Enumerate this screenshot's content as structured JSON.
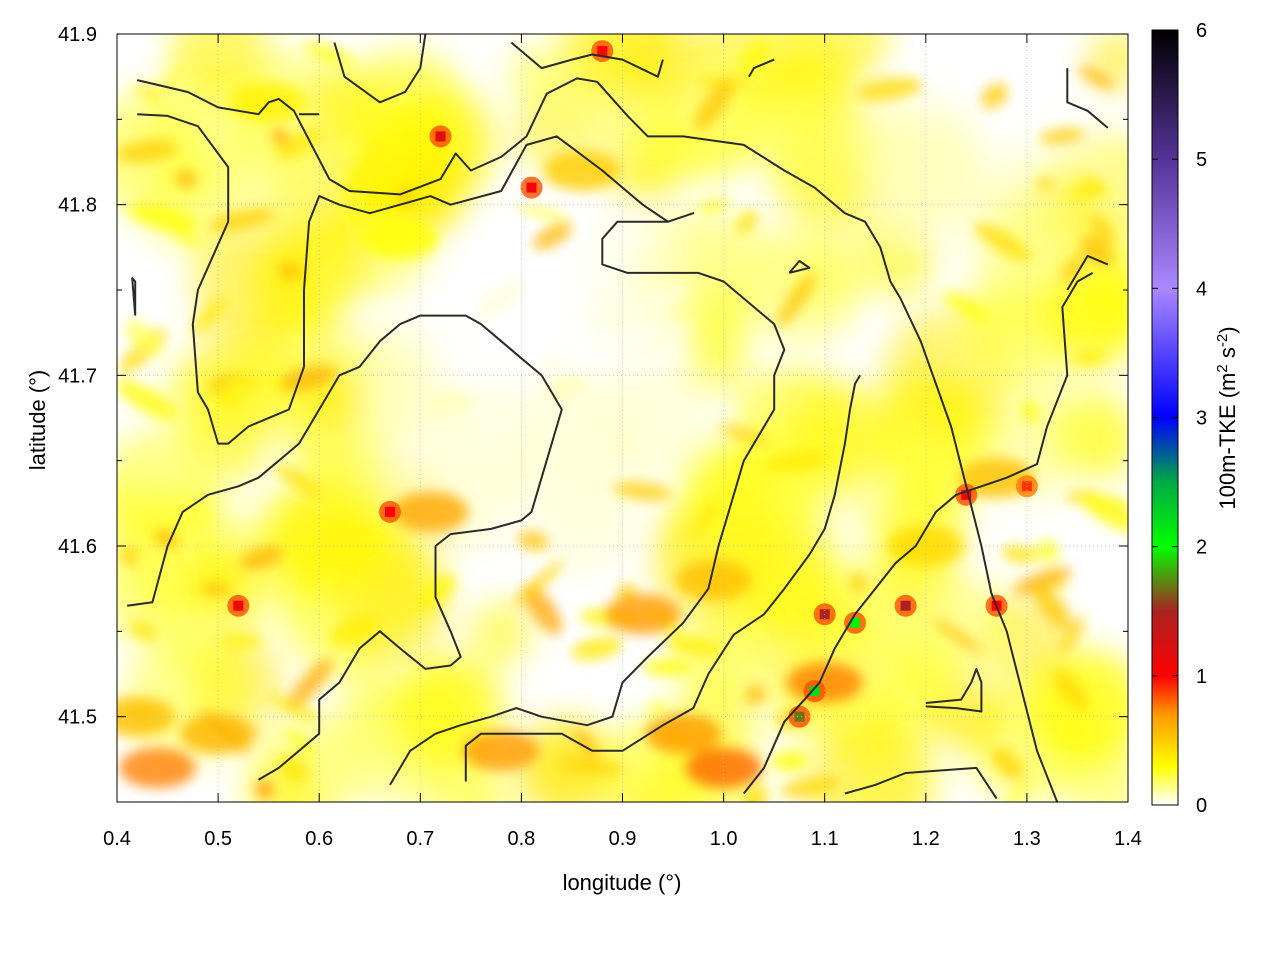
{
  "chart_data": {
    "type": "heatmap",
    "xlabel": "longitude (°)",
    "ylabel": "latitude (°)",
    "xlim": [
      0.4,
      1.4
    ],
    "ylim": [
      41.45,
      41.9
    ],
    "x_ticks": [
      "0.4",
      "0.5",
      "0.6",
      "0.7",
      "0.8",
      "0.9",
      "1.0",
      "1.1",
      "1.2",
      "1.3",
      "1.4"
    ],
    "y_ticks": [
      "41.5",
      "41.6",
      "41.7",
      "41.8",
      "41.9"
    ],
    "grid": true,
    "colorbar": {
      "label_main": "100m-TKE (m",
      "sup1": "2",
      "label_mid": " s",
      "sup2": "-2",
      "label_end": ")",
      "range": [
        0,
        6
      ],
      "ticks": [
        "0",
        "1",
        "2",
        "3",
        "4",
        "5",
        "6"
      ],
      "stops": [
        {
          "value": 0,
          "color": "#ffffff"
        },
        {
          "value": 0.3,
          "color": "#ffff00"
        },
        {
          "value": 0.7,
          "color": "#ff9900"
        },
        {
          "value": 1.0,
          "color": "#ff0000"
        },
        {
          "value": 1.5,
          "color": "#aa2222"
        },
        {
          "value": 2.0,
          "color": "#00ff00"
        },
        {
          "value": 2.5,
          "color": "#00aa44"
        },
        {
          "value": 3.0,
          "color": "#0000ff"
        },
        {
          "value": 4.0,
          "color": "#aa88ff"
        },
        {
          "value": 5.0,
          "color": "#553399"
        },
        {
          "value": 6.0,
          "color": "#000000"
        }
      ]
    },
    "hotspots": [
      {
        "lon": 0.72,
        "lat": 41.84,
        "value": 1.2
      },
      {
        "lon": 0.81,
        "lat": 41.81,
        "value": 1.1
      },
      {
        "lon": 0.88,
        "lat": 41.89,
        "value": 1.0
      },
      {
        "lon": 0.52,
        "lat": 41.565,
        "value": 1.1
      },
      {
        "lon": 0.67,
        "lat": 41.62,
        "value": 1.0
      },
      {
        "lon": 1.1,
        "lat": 41.56,
        "value": 1.5
      },
      {
        "lon": 1.13,
        "lat": 41.555,
        "value": 2.1
      },
      {
        "lon": 1.09,
        "lat": 41.515,
        "value": 2.2
      },
      {
        "lon": 1.075,
        "lat": 41.5,
        "value": 1.7
      },
      {
        "lon": 1.18,
        "lat": 41.565,
        "value": 1.5
      },
      {
        "lon": 1.27,
        "lat": 41.565,
        "value": 1.0
      },
      {
        "lon": 1.24,
        "lat": 41.63,
        "value": 1.0
      },
      {
        "lon": 1.3,
        "lat": 41.635,
        "value": 0.9
      }
    ],
    "contours": [
      [
        [
          0.42,
          41.873
        ],
        [
          0.47,
          41.866
        ],
        [
          0.5,
          41.857
        ],
        [
          0.54,
          41.853
        ],
        [
          0.55,
          41.86
        ],
        [
          0.56,
          41.862
        ],
        [
          0.575,
          41.855
        ],
        [
          0.61,
          41.815
        ],
        [
          0.63,
          41.808
        ],
        [
          0.68,
          41.806
        ],
        [
          0.72,
          41.815
        ],
        [
          0.735,
          41.83
        ],
        [
          0.75,
          41.82
        ],
        [
          0.78,
          41.828
        ],
        [
          0.805,
          41.84
        ],
        [
          0.825,
          41.865
        ],
        [
          0.855,
          41.874
        ],
        [
          0.875,
          41.872
        ],
        [
          0.905,
          41.852
        ],
        [
          0.925,
          41.84
        ],
        [
          0.96,
          41.84
        ],
        [
          1.02,
          41.835
        ],
        [
          1.06,
          41.82
        ],
        [
          1.09,
          41.81
        ],
        [
          1.12,
          41.795
        ],
        [
          1.14,
          41.79
        ],
        [
          1.155,
          41.775
        ],
        [
          1.165,
          41.755
        ],
        [
          1.175,
          41.745
        ],
        [
          1.195,
          41.72
        ],
        [
          1.225,
          41.67
        ],
        [
          1.255,
          41.6
        ],
        [
          1.265,
          41.572
        ],
        [
          1.28,
          41.55
        ],
        [
          1.31,
          41.48
        ],
        [
          1.33,
          41.45
        ]
      ],
      [
        [
          0.42,
          41.853
        ],
        [
          0.45,
          41.852
        ],
        [
          0.48,
          41.846
        ],
        [
          0.51,
          41.822
        ],
        [
          0.51,
          41.79
        ],
        [
          0.48,
          41.75
        ],
        [
          0.475,
          41.73
        ],
        [
          0.48,
          41.69
        ],
        [
          0.49,
          41.68
        ],
        [
          0.5,
          41.66
        ],
        [
          0.51,
          41.66
        ],
        [
          0.53,
          41.67
        ],
        [
          0.57,
          41.68
        ],
        [
          0.585,
          41.705
        ],
        [
          0.585,
          41.75
        ],
        [
          0.59,
          41.79
        ],
        [
          0.6,
          41.805
        ],
        [
          0.62,
          41.8
        ],
        [
          0.65,
          41.795
        ],
        [
          0.68,
          41.8
        ],
        [
          0.71,
          41.805
        ],
        [
          0.73,
          41.8
        ],
        [
          0.78,
          41.808
        ],
        [
          0.805,
          41.835
        ],
        [
          0.835,
          41.84
        ],
        [
          0.88,
          41.82
        ],
        [
          0.92,
          41.8
        ],
        [
          0.945,
          41.79
        ],
        [
          0.97,
          41.795
        ],
        [
          0.945,
          41.79
        ],
        [
          0.895,
          41.79
        ],
        [
          0.88,
          41.78
        ],
        [
          0.88,
          41.765
        ],
        [
          0.905,
          41.76
        ],
        [
          0.94,
          41.76
        ],
        [
          0.975,
          41.76
        ],
        [
          1.0,
          41.755
        ],
        [
          1.02,
          41.745
        ],
        [
          1.05,
          41.73
        ],
        [
          1.06,
          41.715
        ],
        [
          1.05,
          41.7
        ],
        [
          1.05,
          41.68
        ],
        [
          1.02,
          41.65
        ],
        [
          1.005,
          41.62
        ],
        [
          0.995,
          41.6
        ],
        [
          0.985,
          41.575
        ],
        [
          0.96,
          41.555
        ],
        [
          0.925,
          41.535
        ],
        [
          0.9,
          41.52
        ],
        [
          0.89,
          41.5
        ],
        [
          0.865,
          41.495
        ],
        [
          0.82,
          41.5
        ],
        [
          0.795,
          41.505
        ],
        [
          0.77,
          41.5
        ],
        [
          0.74,
          41.495
        ],
        [
          0.715,
          41.49
        ],
        [
          0.69,
          41.48
        ],
        [
          0.67,
          41.46
        ]
      ],
      [
        [
          0.41,
          41.565
        ],
        [
          0.435,
          41.567
        ],
        [
          0.45,
          41.6
        ],
        [
          0.465,
          41.62
        ],
        [
          0.49,
          41.63
        ],
        [
          0.52,
          41.635
        ],
        [
          0.54,
          41.64
        ],
        [
          0.56,
          41.65
        ],
        [
          0.58,
          41.66
        ],
        [
          0.6,
          41.68
        ],
        [
          0.62,
          41.7
        ],
        [
          0.64,
          41.705
        ],
        [
          0.66,
          41.72
        ],
        [
          0.68,
          41.73
        ],
        [
          0.7,
          41.735
        ],
        [
          0.73,
          41.735
        ],
        [
          0.745,
          41.735
        ],
        [
          0.76,
          41.73
        ],
        [
          0.78,
          41.72
        ],
        [
          0.8,
          41.71
        ],
        [
          0.82,
          41.7
        ],
        [
          0.83,
          41.69
        ],
        [
          0.84,
          41.68
        ],
        [
          0.83,
          41.66
        ],
        [
          0.82,
          41.64
        ],
        [
          0.81,
          41.62
        ],
        [
          0.8,
          41.615
        ],
        [
          0.77,
          41.61
        ],
        [
          0.73,
          41.607
        ],
        [
          0.715,
          41.6
        ],
        [
          0.715,
          41.57
        ],
        [
          0.73,
          41.55
        ],
        [
          0.74,
          41.535
        ],
        [
          0.73,
          41.53
        ],
        [
          0.705,
          41.528
        ],
        [
          0.68,
          41.54
        ],
        [
          0.66,
          41.55
        ],
        [
          0.64,
          41.54
        ],
        [
          0.62,
          41.52
        ],
        [
          0.6,
          41.51
        ],
        [
          0.6,
          41.49
        ],
        [
          0.58,
          41.48
        ],
        [
          0.56,
          41.47
        ],
        [
          0.54,
          41.463
        ]
      ],
      [
        [
          0.745,
          41.462
        ],
        [
          0.745,
          41.483
        ],
        [
          0.76,
          41.49
        ],
        [
          0.8,
          41.49
        ],
        [
          0.84,
          41.49
        ],
        [
          0.87,
          41.48
        ],
        [
          0.9,
          41.48
        ],
        [
          0.94,
          41.495
        ],
        [
          0.97,
          41.505
        ],
        [
          0.985,
          41.525
        ],
        [
          1.01,
          41.548
        ],
        [
          1.04,
          41.56
        ],
        [
          1.06,
          41.575
        ],
        [
          1.085,
          41.595
        ],
        [
          1.1,
          41.61
        ],
        [
          1.11,
          41.63
        ],
        [
          1.12,
          41.66
        ],
        [
          1.125,
          41.68
        ],
        [
          1.13,
          41.695
        ],
        [
          1.135,
          41.7
        ]
      ],
      [
        [
          1.02,
          41.455
        ],
        [
          1.04,
          41.47
        ],
        [
          1.06,
          41.497
        ],
        [
          1.08,
          41.51
        ],
        [
          1.095,
          41.52
        ],
        [
          1.11,
          41.54
        ],
        [
          1.13,
          41.56
        ],
        [
          1.15,
          41.575
        ],
        [
          1.17,
          41.59
        ],
        [
          1.19,
          41.6
        ],
        [
          1.21,
          41.62
        ],
        [
          1.23,
          41.63
        ],
        [
          1.255,
          41.635
        ],
        [
          1.28,
          41.64
        ],
        [
          1.31,
          41.648
        ],
        [
          1.32,
          41.67
        ],
        [
          1.34,
          41.7
        ],
        [
          1.335,
          41.74
        ],
        [
          1.35,
          41.755
        ],
        [
          1.365,
          41.76
        ]
      ],
      [
        [
          1.2,
          41.506
        ],
        [
          1.23,
          41.505
        ],
        [
          1.255,
          41.503
        ],
        [
          1.255,
          41.52
        ],
        [
          1.25,
          41.528
        ],
        [
          1.245,
          41.52
        ],
        [
          1.235,
          41.51
        ],
        [
          1.2,
          41.508
        ]
      ],
      [
        [
          1.12,
          41.455
        ],
        [
          1.15,
          41.46
        ],
        [
          1.18,
          41.467
        ],
        [
          1.25,
          41.47
        ],
        [
          1.27,
          41.452
        ]
      ],
      [
        [
          0.615,
          41.895
        ],
        [
          0.625,
          41.875
        ],
        [
          0.66,
          41.86
        ],
        [
          0.685,
          41.866
        ],
        [
          0.7,
          41.88
        ],
        [
          0.705,
          41.9
        ]
      ],
      [
        [
          0.79,
          41.895
        ],
        [
          0.82,
          41.88
        ],
        [
          0.85,
          41.885
        ],
        [
          0.87,
          41.888
        ],
        [
          0.9,
          41.885
        ],
        [
          0.935,
          41.875
        ],
        [
          0.94,
          41.885
        ]
      ],
      [
        [
          1.025,
          41.875
        ],
        [
          1.03,
          41.88
        ],
        [
          1.05,
          41.885
        ]
      ],
      [
        [
          1.34,
          41.88
        ],
        [
          1.34,
          41.86
        ],
        [
          1.36,
          41.855
        ],
        [
          1.38,
          41.845
        ]
      ],
      [
        [
          0.58,
          41.853
        ],
        [
          0.6,
          41.853
        ]
      ],
      [
        [
          0.418,
          41.735
        ],
        [
          0.418,
          41.755
        ],
        [
          0.415,
          41.757
        ],
        [
          0.418,
          41.735
        ]
      ],
      [
        [
          1.065,
          41.76
        ],
        [
          1.085,
          41.763
        ],
        [
          1.075,
          41.767
        ],
        [
          1.065,
          41.76
        ]
      ],
      [
        [
          1.34,
          41.75
        ],
        [
          1.36,
          41.77
        ],
        [
          1.38,
          41.765
        ]
      ]
    ]
  }
}
